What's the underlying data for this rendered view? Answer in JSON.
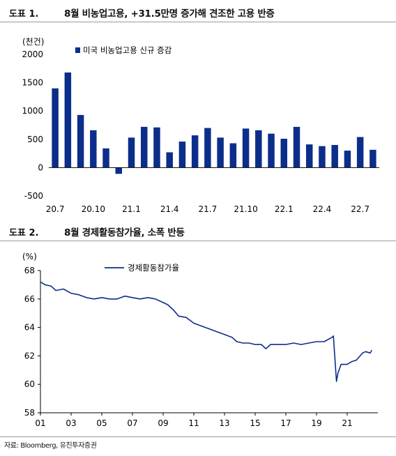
{
  "figure1": {
    "label": "도표 1.",
    "title": "8월 비농업고용, +31.5만명 증가해 견조한 고용 반증"
  },
  "figure2": {
    "label": "도표 2.",
    "title": "8월 경제활동참가율, 소폭 반등"
  },
  "source": "자료: Bloomberg, 유진투자증권",
  "colors": {
    "bar": "#0b2e8a",
    "line": "#0b2e8a",
    "axis": "#000000"
  },
  "chart_data": [
    {
      "type": "bar",
      "unit_label": "(천건)",
      "series": [
        {
          "name": "미국 비농업고용 신규 증감",
          "values": [
            1400,
            1680,
            930,
            660,
            340,
            -110,
            530,
            720,
            710,
            270,
            460,
            570,
            700,
            530,
            430,
            690,
            660,
            600,
            510,
            720,
            410,
            380,
            400,
            300,
            540,
            315
          ]
        }
      ],
      "categories": [
        "20.7",
        "20.8",
        "20.9",
        "20.10",
        "20.11",
        "20.12",
        "21.1",
        "21.2",
        "21.3",
        "21.4",
        "21.5",
        "21.6",
        "21.7",
        "21.8",
        "21.9",
        "21.10",
        "21.11",
        "21.12",
        "22.1",
        "22.2",
        "22.3",
        "22.4",
        "22.5",
        "22.6",
        "22.7",
        "22.8"
      ],
      "x_tick_labels": [
        "20.7",
        "20.10",
        "21.1",
        "21.4",
        "21.7",
        "21.10",
        "22.1",
        "22.4",
        "22.7"
      ],
      "y_ticks": [
        2000,
        1500,
        1000,
        500,
        0,
        -500
      ],
      "ylim": [
        -500,
        2000
      ],
      "legend_position": "top-left"
    },
    {
      "type": "line",
      "unit_label": "(%)",
      "series": [
        {
          "name": "경제활동참가율",
          "points": [
            [
              2001.0,
              67.2
            ],
            [
              2001.3,
              67.0
            ],
            [
              2001.7,
              66.9
            ],
            [
              2002.0,
              66.6
            ],
            [
              2002.5,
              66.7
            ],
            [
              2003.0,
              66.4
            ],
            [
              2003.5,
              66.3
            ],
            [
              2004.0,
              66.1
            ],
            [
              2004.5,
              66.0
            ],
            [
              2005.0,
              66.1
            ],
            [
              2005.5,
              66.0
            ],
            [
              2006.0,
              66.0
            ],
            [
              2006.5,
              66.2
            ],
            [
              2007.0,
              66.1
            ],
            [
              2007.5,
              66.0
            ],
            [
              2008.0,
              66.1
            ],
            [
              2008.5,
              66.0
            ],
            [
              2008.9,
              65.8
            ],
            [
              2009.3,
              65.6
            ],
            [
              2009.7,
              65.2
            ],
            [
              2010.0,
              64.8
            ],
            [
              2010.5,
              64.7
            ],
            [
              2011.0,
              64.3
            ],
            [
              2011.5,
              64.1
            ],
            [
              2012.0,
              63.9
            ],
            [
              2012.5,
              63.7
            ],
            [
              2013.0,
              63.5
            ],
            [
              2013.5,
              63.3
            ],
            [
              2013.8,
              63.0
            ],
            [
              2014.2,
              62.9
            ],
            [
              2014.6,
              62.9
            ],
            [
              2015.0,
              62.8
            ],
            [
              2015.4,
              62.8
            ],
            [
              2015.7,
              62.5
            ],
            [
              2016.0,
              62.8
            ],
            [
              2016.5,
              62.8
            ],
            [
              2017.0,
              62.8
            ],
            [
              2017.5,
              62.9
            ],
            [
              2018.0,
              62.8
            ],
            [
              2018.5,
              62.9
            ],
            [
              2019.0,
              63.0
            ],
            [
              2019.5,
              63.0
            ],
            [
              2020.0,
              63.3
            ],
            [
              2020.1,
              63.4
            ],
            [
              2020.3,
              60.2
            ],
            [
              2020.4,
              60.8
            ],
            [
              2020.6,
              61.4
            ],
            [
              2021.0,
              61.4
            ],
            [
              2021.3,
              61.6
            ],
            [
              2021.6,
              61.7
            ],
            [
              2022.0,
              62.2
            ],
            [
              2022.2,
              62.3
            ],
            [
              2022.5,
              62.2
            ],
            [
              2022.6,
              62.4
            ]
          ]
        }
      ],
      "x_tick_labels": [
        "01",
        "03",
        "05",
        "07",
        "09",
        "11",
        "13",
        "15",
        "17",
        "19",
        "21"
      ],
      "x_ticks": [
        2001,
        2003,
        2005,
        2007,
        2009,
        2011,
        2013,
        2015,
        2017,
        2019,
        2021
      ],
      "xlim": [
        2001,
        2023
      ],
      "y_ticks": [
        68,
        66,
        64,
        62,
        60,
        58
      ],
      "ylim": [
        58,
        68
      ],
      "legend_position": "top-center"
    }
  ]
}
